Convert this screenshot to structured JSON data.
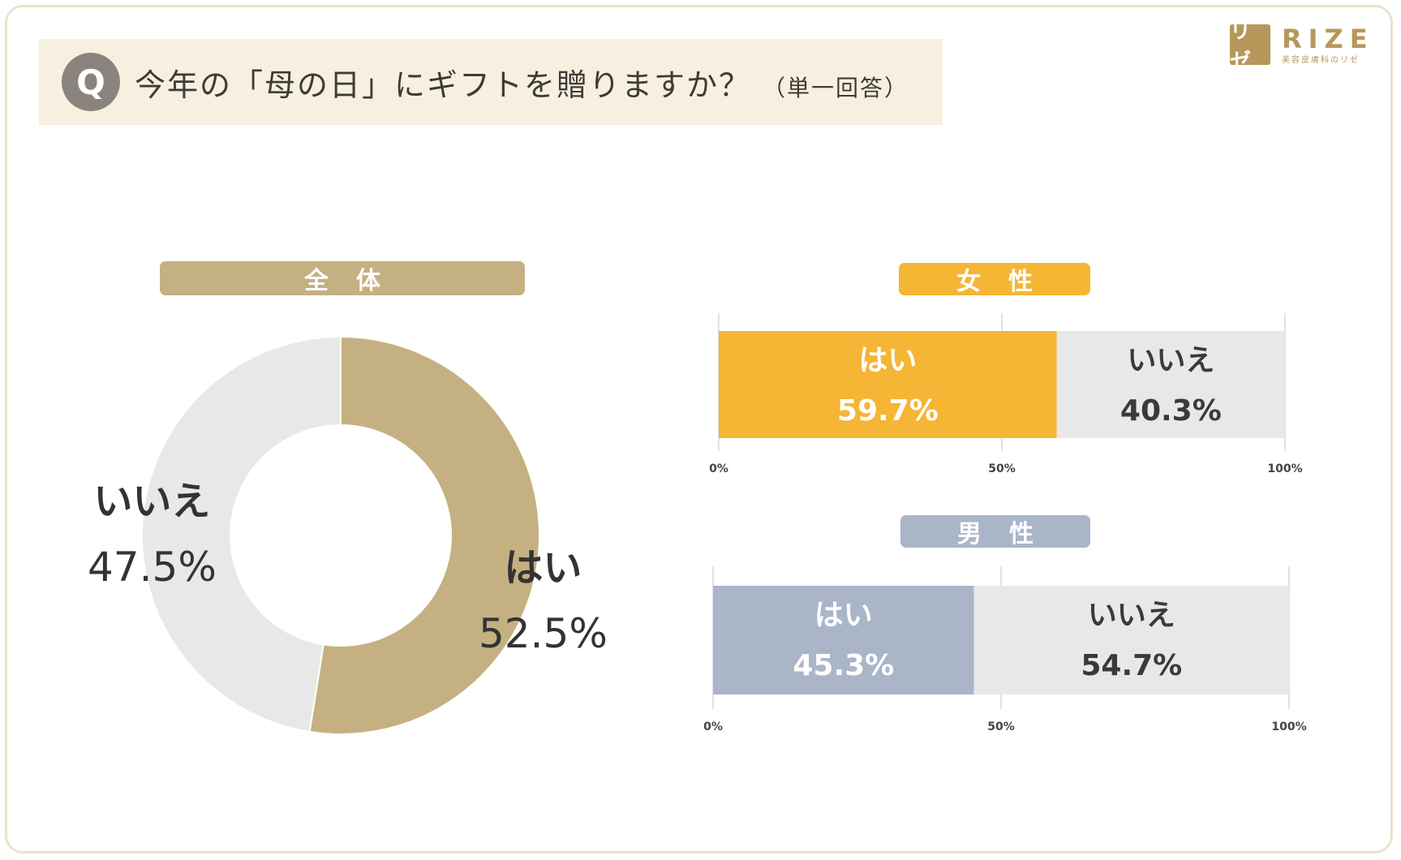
{
  "header": {
    "q_mark": "Q",
    "question": "今年の「母の日」にギフトを贈りますか？",
    "qualifier": "（単一回答）"
  },
  "logo": {
    "mark": "リゼ",
    "word": "RIZE",
    "tagline": "美容皮膚科のリゼ"
  },
  "colors": {
    "yes_all": "#c5b081",
    "no": "#e8e8e8",
    "yes_female": "#f5b535",
    "yes_male": "#aab5c8"
  },
  "chart_data": [
    {
      "type": "pie",
      "title": "全体",
      "categories": [
        "はい",
        "いいえ"
      ],
      "values": [
        52.5,
        47.5
      ],
      "data_labels": [
        "52.5%",
        "47.5%"
      ]
    },
    {
      "type": "bar",
      "orientation": "horizontal-stacked",
      "title": "女性",
      "categories": [
        "はい",
        "いいえ"
      ],
      "values": [
        59.7,
        40.3
      ],
      "data_labels": [
        "59.7%",
        "40.3%"
      ],
      "axis_ticks": [
        "0%",
        "50%",
        "100%"
      ],
      "xlim": [
        0,
        100
      ]
    },
    {
      "type": "bar",
      "orientation": "horizontal-stacked",
      "title": "男性",
      "categories": [
        "はい",
        "いいえ"
      ],
      "values": [
        45.3,
        54.7
      ],
      "data_labels": [
        "45.3%",
        "54.7%"
      ],
      "axis_ticks": [
        "0%",
        "50%",
        "100%"
      ],
      "xlim": [
        0,
        100
      ]
    }
  ]
}
